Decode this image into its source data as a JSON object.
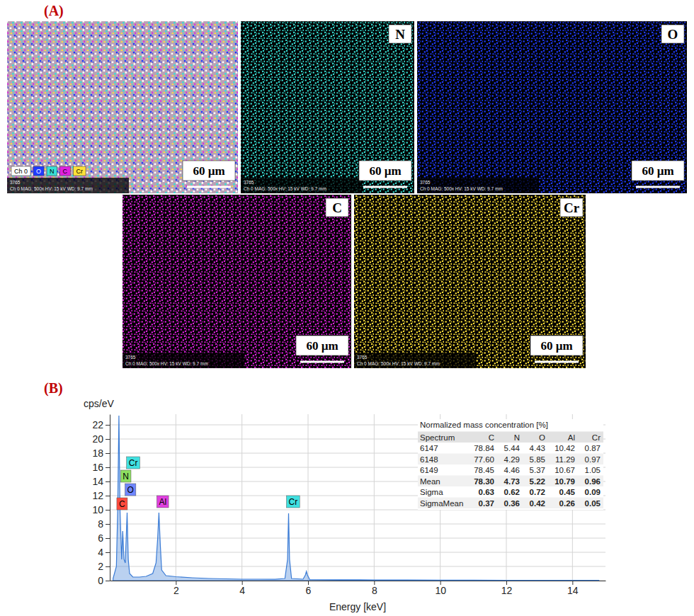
{
  "figure": {
    "panel_labels": [
      "(A)",
      "(B)"
    ]
  },
  "maps": {
    "scale_bar": "60 µm",
    "footer": [
      "3765",
      "Ch 0  MAG: 500x  HV: 15 kV  WD: 9.7 mm"
    ],
    "composite": {
      "legend": [
        {
          "label": "Ch 0",
          "color": "#ffffff"
        },
        {
          "label": "O",
          "color": "#1f3bff"
        },
        {
          "label": "N",
          "color": "#37e0d6"
        },
        {
          "label": "C",
          "color": "#e020e0"
        },
        {
          "label": "Cr",
          "color": "#ffe23a"
        }
      ]
    },
    "element_maps": [
      {
        "label": "N",
        "color": "#37e0d6"
      },
      {
        "label": "O",
        "color": "#1f3bff"
      },
      {
        "label": "C",
        "color": "#e020e0"
      },
      {
        "label": "Cr",
        "color": "#ffe23a"
      }
    ]
  },
  "table": {
    "title": "Normalized mass concentration [%]",
    "columns": [
      "Spectrum",
      "C",
      "N",
      "O",
      "Al",
      "Cr"
    ],
    "rows": [
      [
        "6147",
        "78.84",
        "5.44",
        "4.43",
        "10.42",
        "0.87"
      ],
      [
        "6148",
        "77.60",
        "4.29",
        "5.85",
        "11.29",
        "0.97"
      ],
      [
        "6149",
        "78.45",
        "4.46",
        "5.37",
        "10.67",
        "1.05"
      ],
      [
        "Mean",
        "78.30",
        "4.73",
        "5.22",
        "10.79",
        "0.96"
      ],
      [
        "Sigma",
        "0.63",
        "0.62",
        "0.72",
        "0.45",
        "0.09"
      ],
      [
        "SigmaMean",
        "0.37",
        "0.36",
        "0.42",
        "0.26",
        "0.05"
      ]
    ]
  },
  "chart_data": {
    "type": "area",
    "y_label": "cps/eV",
    "x_label": "Energy [keV]",
    "xlim": [
      0,
      15
    ],
    "ylim": [
      0,
      23.5
    ],
    "xticks": [
      2,
      4,
      6,
      8,
      10,
      12,
      14
    ],
    "yticks": [
      0,
      2,
      4,
      6,
      8,
      10,
      12,
      14,
      16,
      18,
      20,
      22
    ],
    "grid": true,
    "color": "#3a7bd5",
    "x": [
      0.1,
      0.2,
      0.24,
      0.277,
      0.31,
      0.36,
      0.392,
      0.43,
      0.47,
      0.525,
      0.56,
      0.6,
      0.7,
      0.9,
      1.1,
      1.3,
      1.4,
      1.45,
      1.487,
      1.53,
      1.57,
      1.7,
      2.0,
      2.5,
      3.0,
      3.5,
      4.0,
      4.5,
      5.0,
      5.3,
      5.38,
      5.411,
      5.44,
      5.5,
      5.85,
      5.92,
      5.95,
      5.98,
      6.05,
      7.0,
      8.0,
      9.0,
      10.0,
      11.0,
      12.0,
      13.0,
      14.0,
      14.8
    ],
    "values": [
      0.3,
      2,
      10,
      23.3,
      10,
      3,
      7,
      3,
      2.5,
      9.6,
      3,
      1,
      0.5,
      0.5,
      0.6,
      1.0,
      2.5,
      6,
      9.6,
      5,
      1.5,
      0.7,
      0.55,
      0.4,
      0.3,
      0.25,
      0.2,
      0.2,
      0.18,
      0.3,
      3,
      9.5,
      3,
      0.3,
      0.2,
      0.8,
      1.3,
      0.8,
      0.15,
      0.12,
      0.1,
      0.08,
      0.07,
      0.06,
      0.05,
      0.04,
      0.04,
      0.03
    ],
    "annotations": [
      {
        "text": "Cr",
        "x": 0.573,
        "y": 15.8,
        "color": "#40e0e0"
      },
      {
        "text": "N",
        "x": 0.392,
        "y": 13.9,
        "color": "#8ee060"
      },
      {
        "text": "O",
        "x": 0.525,
        "y": 12.0,
        "color": "#6f86ff"
      },
      {
        "text": "C",
        "x": 0.277,
        "y": 10.0,
        "color": "#ff4a3d"
      },
      {
        "text": "Al",
        "x": 1.487,
        "y": 10.3,
        "color": "#e040e0"
      },
      {
        "text": "Cr",
        "x": 5.411,
        "y": 10.3,
        "color": "#40e0e0"
      }
    ]
  }
}
